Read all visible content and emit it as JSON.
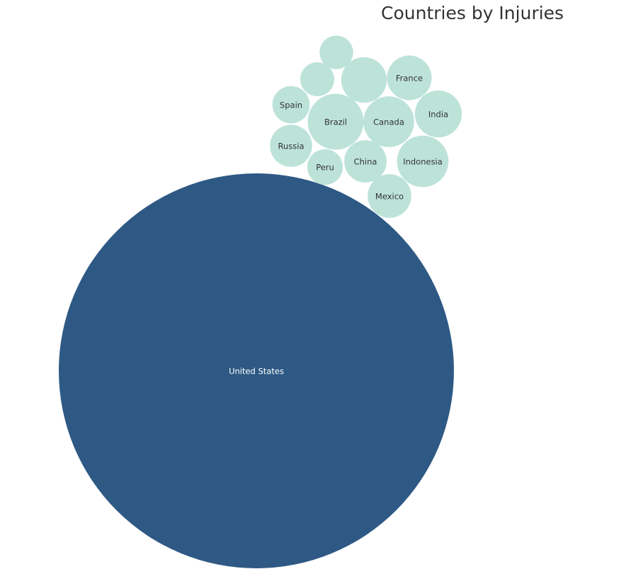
{
  "chart_data": {
    "type": "bubble",
    "title": "Countries by Injuries",
    "colors": {
      "highlight": "#2e5984",
      "default": "#bde3d9",
      "highlight_text": "#ffffff",
      "default_text": "#333333"
    },
    "bubbles": [
      {
        "label": "United States",
        "value": 100.0,
        "highlight": true
      },
      {
        "label": "Indonesia",
        "value": 1.7
      },
      {
        "label": "India",
        "value": 1.41
      },
      {
        "label": "Brazil",
        "value": 2.0
      },
      {
        "label": "Canada",
        "value": 1.65
      },
      {
        "label": "France",
        "value": 1.28
      },
      {
        "label": "Mexico",
        "value": 1.22
      },
      {
        "label": "",
        "value": 1.33
      },
      {
        "label": "Russia",
        "value": 1.14
      },
      {
        "label": "China",
        "value": 1.15
      },
      {
        "label": "Spain",
        "value": 0.89
      },
      {
        "label": "Peru",
        "value": 0.81
      },
      {
        "label": "",
        "value": 0.72
      },
      {
        "label": "",
        "value": 0.74
      }
    ]
  }
}
